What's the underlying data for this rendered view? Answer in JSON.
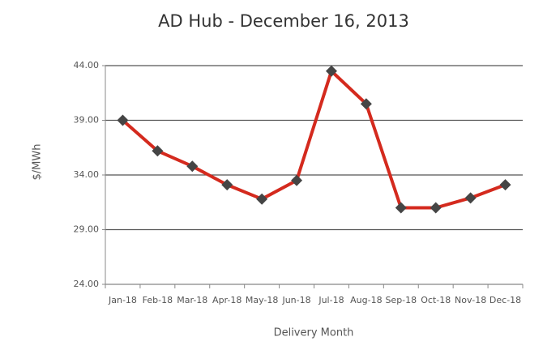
{
  "chart_data": {
    "type": "line",
    "title": "AD Hub -  December 16, 2013",
    "x_label": "Delivery Month",
    "y_label": "$/MWh",
    "categories": [
      "Jan-18",
      "Feb-18",
      "Mar-18",
      "Apr-18",
      "May-18",
      "Jun-18",
      "Jul-18",
      "Aug-18",
      "Sep-18",
      "Oct-18",
      "Nov-18",
      "Dec-18"
    ],
    "series": [
      {
        "name": "AD Hub",
        "color": "#d42a1e",
        "marker_color": "#454545",
        "values": [
          39.0,
          36.2,
          34.8,
          33.1,
          31.8,
          33.5,
          43.5,
          40.5,
          31.0,
          31.0,
          31.9,
          33.1
        ]
      }
    ],
    "ylim": [
      24,
      44
    ],
    "yticks": [
      {
        "value": 24,
        "label": "24.00"
      },
      {
        "value": 29,
        "label": "29.00"
      },
      {
        "value": 34,
        "label": "34.00"
      },
      {
        "value": 39,
        "label": "39.00"
      },
      {
        "value": 44,
        "label": "44.00"
      }
    ],
    "grid": true
  }
}
